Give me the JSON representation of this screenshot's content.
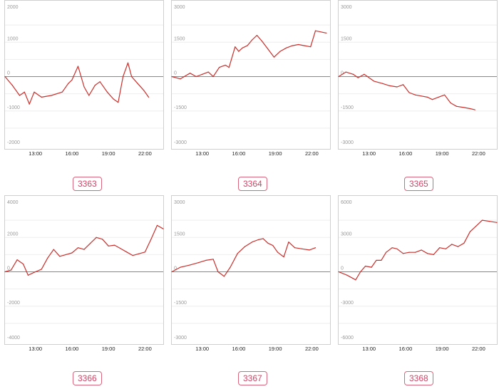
{
  "colors": {
    "line": "#c9302c",
    "zero_line": "#888888",
    "grid": "#eeeeee",
    "badge": "#d24466"
  },
  "chart_data": [
    {
      "type": "line",
      "badge": "3363",
      "ylim": [
        -2000,
        2000
      ],
      "yticks": [
        2000,
        1000,
        0,
        -1000,
        -2000
      ],
      "xlim": [
        10.5,
        23.5
      ],
      "xticks": [
        "13:00",
        "16:00",
        "19:00",
        "22:00"
      ],
      "xtick_values": [
        13,
        16,
        19,
        22
      ],
      "x": [
        10.5,
        11.1,
        11.7,
        12.1,
        12.5,
        12.9,
        13.5,
        14.3,
        15.2,
        15.7,
        16.0,
        16.5,
        17.0,
        17.4,
        17.9,
        18.3,
        18.9,
        19.4,
        19.8,
        20.2,
        20.6,
        20.9,
        21.4,
        21.9,
        22.3
      ],
      "values": [
        0,
        -250,
        -550,
        -450,
        -800,
        -450,
        -600,
        -550,
        -450,
        -200,
        -100,
        300,
        -300,
        -550,
        -250,
        -150,
        -450,
        -650,
        -750,
        0,
        400,
        0,
        -200,
        -400,
        -600
      ]
    },
    {
      "type": "line",
      "badge": "3364",
      "ylim": [
        -3000,
        3000
      ],
      "yticks": [
        3000,
        1500,
        0,
        -1500,
        -3000
      ],
      "xlim": [
        10.5,
        23.5
      ],
      "xticks": [
        "13:00",
        "16:00",
        "19:00",
        "22:00"
      ],
      "xtick_values": [
        13,
        16,
        19,
        22
      ],
      "x": [
        10.5,
        11.2,
        12.0,
        12.5,
        13.0,
        13.5,
        13.9,
        14.4,
        14.9,
        15.2,
        15.7,
        16.0,
        16.3,
        16.7,
        17.1,
        17.5,
        17.9,
        18.4,
        18.9,
        19.4,
        19.9,
        20.4,
        20.9,
        21.4,
        21.9,
        22.3,
        23.2
      ],
      "values": [
        0,
        -100,
        150,
        0,
        100,
        200,
        0,
        400,
        500,
        400,
        1300,
        1100,
        1250,
        1350,
        1600,
        1800,
        1550,
        1200,
        850,
        1100,
        1250,
        1350,
        1400,
        1350,
        1300,
        2000,
        1900
      ]
    },
    {
      "type": "line",
      "badge": "3365",
      "ylim": [
        -3000,
        3000
      ],
      "yticks": [
        3000,
        1500,
        0,
        -1500,
        -3000
      ],
      "xlim": [
        10.5,
        23.5
      ],
      "xticks": [
        "13:00",
        "16:00",
        "19:00",
        "22:00"
      ],
      "xtick_values": [
        13,
        16,
        19,
        22
      ],
      "x": [
        10.5,
        11.1,
        11.7,
        12.1,
        12.6,
        13.4,
        14.1,
        14.7,
        15.3,
        15.8,
        16.3,
        16.8,
        17.3,
        17.8,
        18.2,
        18.7,
        19.2,
        19.7,
        20.2,
        20.8,
        21.3,
        21.7
      ],
      "values": [
        0,
        200,
        100,
        -50,
        100,
        -200,
        -300,
        -400,
        -450,
        -350,
        -700,
        -800,
        -850,
        -900,
        -1000,
        -900,
        -800,
        -1150,
        -1300,
        -1350,
        -1400,
        -1450
      ]
    },
    {
      "type": "line",
      "badge": "3366",
      "ylim": [
        -4000,
        4000
      ],
      "yticks": [
        4000,
        2000,
        0,
        -2000,
        -4000
      ],
      "xlim": [
        10.5,
        23.5
      ],
      "xticks": [
        "13:00",
        "16:00",
        "19:00",
        "22:00"
      ],
      "xtick_values": [
        13,
        16,
        19,
        22
      ],
      "x": [
        10.5,
        11.0,
        11.5,
        12.0,
        12.4,
        13.0,
        13.5,
        14.0,
        14.5,
        15.0,
        15.5,
        16.0,
        16.5,
        17.0,
        17.5,
        18.0,
        18.5,
        19.0,
        19.5,
        20.0,
        20.5,
        21.0,
        21.5,
        22.0,
        22.5,
        23.0,
        23.5
      ],
      "values": [
        0,
        100,
        700,
        450,
        -200,
        0,
        150,
        800,
        1300,
        900,
        1000,
        1100,
        1400,
        1300,
        1650,
        2000,
        1900,
        1500,
        1550,
        1350,
        1150,
        950,
        1050,
        1150,
        1900,
        2700,
        2500
      ]
    },
    {
      "type": "line",
      "badge": "3367",
      "ylim": [
        -3000,
        3000
      ],
      "yticks": [
        3000,
        1500,
        0,
        -1500,
        -3000
      ],
      "xlim": [
        10.5,
        23.5
      ],
      "xticks": [
        "13:00",
        "16:00",
        "19:00",
        "22:00"
      ],
      "xtick_values": [
        13,
        16,
        19,
        22
      ],
      "x": [
        10.5,
        11.2,
        12.0,
        12.7,
        13.3,
        13.9,
        14.3,
        14.8,
        15.3,
        15.9,
        16.5,
        17.1,
        17.6,
        18.0,
        18.4,
        18.8,
        19.2,
        19.7,
        20.1,
        20.6,
        21.2,
        21.8,
        22.3
      ],
      "values": [
        0,
        200,
        300,
        400,
        500,
        550,
        0,
        -200,
        200,
        800,
        1100,
        1300,
        1400,
        1450,
        1250,
        1150,
        850,
        650,
        1300,
        1050,
        1000,
        950,
        1050
      ]
    },
    {
      "type": "line",
      "badge": "3368",
      "ylim": [
        -6000,
        6000
      ],
      "yticks": [
        6000,
        3000,
        0,
        -3000,
        -6000
      ],
      "xlim": [
        10.5,
        23.5
      ],
      "xticks": [
        "13:00",
        "16:00",
        "19:00",
        "22:00"
      ],
      "xtick_values": [
        13,
        16,
        19,
        22
      ],
      "x": [
        10.5,
        11.2,
        11.9,
        12.3,
        12.7,
        13.2,
        13.6,
        14.0,
        14.4,
        14.9,
        15.3,
        15.8,
        16.3,
        16.8,
        17.3,
        17.8,
        18.3,
        18.8,
        19.3,
        19.8,
        20.3,
        20.8,
        21.3,
        21.8,
        22.3,
        22.9,
        23.5
      ],
      "values": [
        0,
        -300,
        -700,
        0,
        500,
        400,
        1000,
        1000,
        1700,
        2100,
        2000,
        1600,
        1700,
        1700,
        1900,
        1600,
        1500,
        2100,
        2000,
        2400,
        2200,
        2500,
        3500,
        4000,
        4500,
        4400,
        4300
      ]
    }
  ]
}
